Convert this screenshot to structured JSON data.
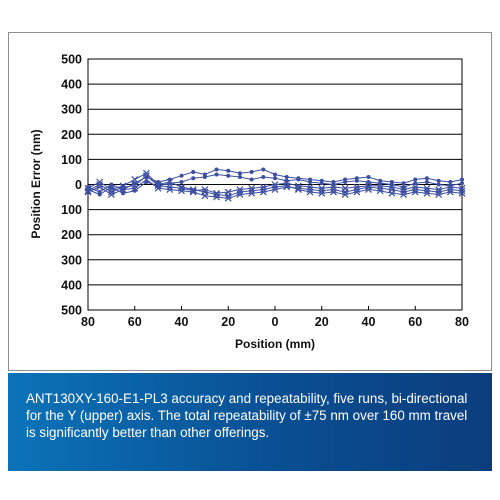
{
  "chart_data": {
    "type": "line",
    "title": "",
    "xlabel": "Position (mm)",
    "ylabel": "Position Error (nm)",
    "xlim": [
      -80,
      80
    ],
    "ylim": [
      -500,
      500
    ],
    "x_tick_values": [
      -80,
      -60,
      -40,
      -20,
      0,
      20,
      40,
      60,
      80
    ],
    "x_tick_labels": [
      "80",
      "60",
      "40",
      "20",
      "0",
      "20",
      "40",
      "60",
      "80"
    ],
    "y_tick_values": [
      500,
      400,
      300,
      200,
      100,
      0,
      -100,
      -200,
      -300,
      -400,
      -500
    ],
    "y_tick_labels": [
      "500",
      "400",
      "300",
      "200",
      "100",
      "0",
      "100",
      "200",
      "300",
      "400",
      "500"
    ],
    "grid": "horizontal",
    "series_color": "#3d4fa0",
    "x": [
      -80,
      -75,
      -70,
      -65,
      -60,
      -55,
      -50,
      -45,
      -40,
      -35,
      -30,
      -25,
      -20,
      -15,
      -10,
      -5,
      0,
      5,
      10,
      15,
      20,
      25,
      30,
      35,
      40,
      45,
      50,
      55,
      60,
      65,
      70,
      75,
      80
    ],
    "series": [
      {
        "marker": "circle",
        "values": [
          -10,
          -30,
          0,
          -20,
          5,
          30,
          10,
          20,
          35,
          50,
          40,
          60,
          55,
          45,
          50,
          60,
          40,
          30,
          25,
          20,
          15,
          10,
          20,
          25,
          30,
          15,
          10,
          5,
          20,
          25,
          15,
          10,
          20
        ]
      },
      {
        "marker": "circle",
        "values": [
          -20,
          -40,
          -10,
          -35,
          -25,
          10,
          -5,
          5,
          10,
          25,
          30,
          40,
          35,
          30,
          20,
          30,
          25,
          15,
          20,
          10,
          5,
          0,
          10,
          15,
          10,
          5,
          0,
          -10,
          5,
          10,
          0,
          -5,
          5
        ]
      },
      {
        "marker": "x",
        "values": [
          -15,
          10,
          -20,
          -5,
          20,
          45,
          0,
          10,
          -10,
          -20,
          -30,
          -40,
          -45,
          -30,
          -25,
          -20,
          -10,
          -5,
          -20,
          -30,
          -35,
          -30,
          -40,
          -30,
          -20,
          -25,
          -35,
          -40,
          -30,
          -35,
          -40,
          -30,
          -35
        ]
      },
      {
        "marker": "x",
        "values": [
          -30,
          -10,
          -40,
          -20,
          -15,
          20,
          -15,
          -20,
          -25,
          -30,
          -45,
          -50,
          -55,
          -40,
          -35,
          -30,
          -20,
          -10,
          -15,
          -20,
          -25,
          -20,
          -30,
          -20,
          -10,
          -15,
          -20,
          -30,
          -20,
          -25,
          -30,
          -20,
          -25
        ]
      },
      {
        "marker": "x",
        "values": [
          -25,
          0,
          -30,
          -10,
          -5,
          35,
          -5,
          -10,
          -15,
          -25,
          -20,
          -35,
          -30,
          -20,
          -15,
          -10,
          0,
          5,
          -5,
          -10,
          -15,
          -10,
          -15,
          -10,
          -5,
          -5,
          -10,
          -20,
          -10,
          -15,
          -20,
          -10,
          -15
        ]
      }
    ]
  },
  "caption": "ANT130XY-160-E1-PL3 accuracy and repeatability, five runs, bi-directional for the Y (upper) axis. The total repeatability of ±75 nm over 160 mm travel is significantly better than other offerings."
}
